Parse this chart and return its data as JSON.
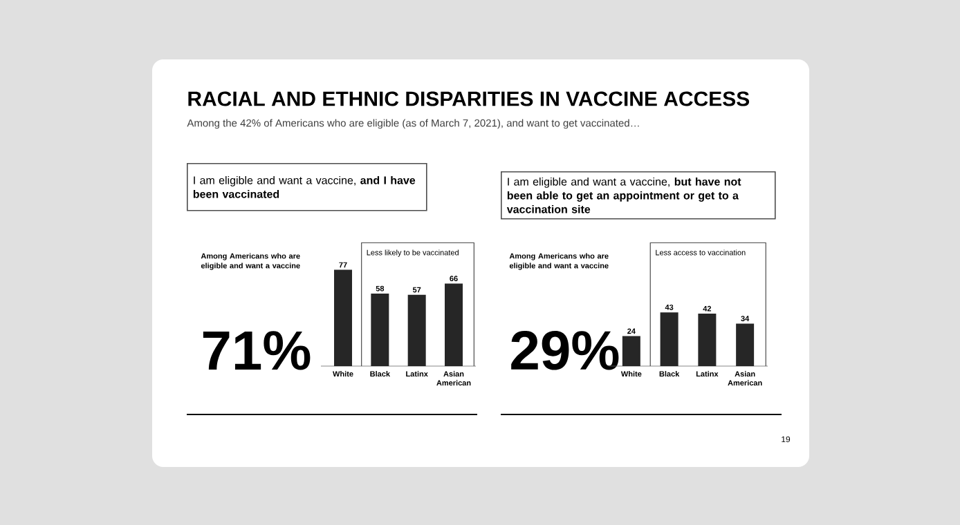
{
  "chart_data": [
    {
      "type": "bar",
      "title": "RACIAL AND ETHNIC DISPARITIES IN VACCINE ACCESS",
      "subtitle": "Among the 42% of Americans who are eligible (as of March 7, 2021), and want to get vaccinated…",
      "categories": [
        "White",
        "Black",
        "Latinx",
        "Asian American"
      ],
      "values": [
        77,
        58,
        57,
        66
      ],
      "color": "#262626",
      "data_labels": true,
      "annotations": [
        "I am eligible and want a vaccine, **and I have been vaccinated**",
        "Among Americans who are eligible and want a vaccine",
        "71%",
        "Less likely to be vaccinated"
      ]
    },
    {
      "type": "bar",
      "categories": [
        "White",
        "Black",
        "Latinx",
        "Asian American"
      ],
      "values": [
        24,
        43,
        42,
        34
      ],
      "color": "#262626",
      "data_labels": true,
      "annotations": [
        "I am eligible and want a vaccine, **but have not been able to get an appointment or get to a vaccination site**",
        "Among Americans who are eligible and want a vaccine",
        "29%",
        "Less access to vaccination",
        "19"
      ]
    }
  ]
}
